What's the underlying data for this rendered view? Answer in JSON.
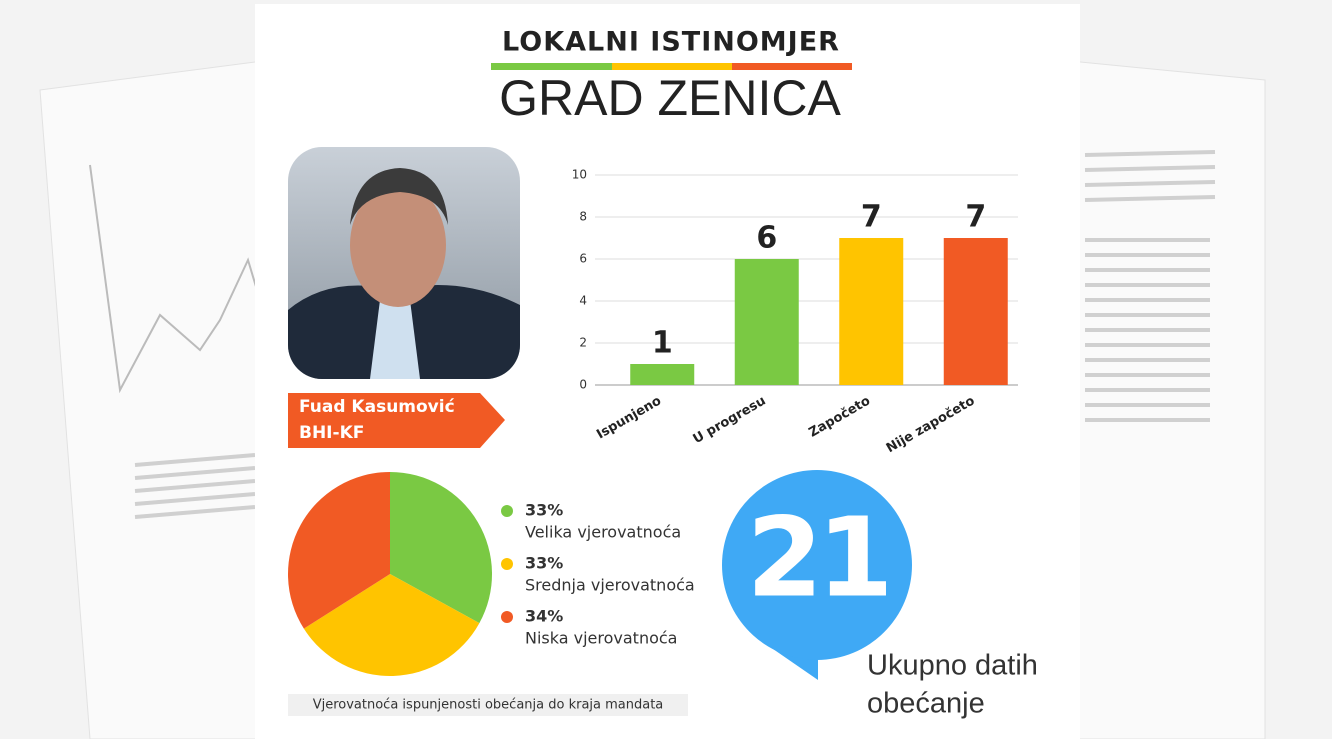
{
  "header": {
    "title": "LOKALNI ISTINOMJER",
    "subtitle": "GRAD ZENICA"
  },
  "candidate": {
    "name": "Fuad Kasumović",
    "party": "BHI-KF"
  },
  "chart_data": [
    {
      "type": "bar",
      "categories": [
        "Ispunjeno",
        "U progresu",
        "Započeto",
        "Nije započeto"
      ],
      "values": [
        1,
        6,
        7,
        7
      ],
      "colors": [
        "#7ac943",
        "#7ac943",
        "#ffc400",
        "#f15a24"
      ],
      "ylim": [
        0,
        10
      ],
      "yticks": [
        0,
        2,
        4,
        6,
        8,
        10
      ],
      "grid": true
    },
    {
      "type": "pie",
      "categories": [
        "Velika vjerovatnoća",
        "Srednja vjerovatnoća",
        "Niska vjerovatnoća"
      ],
      "values": [
        33,
        33,
        34
      ],
      "value_labels": [
        "33%",
        "33%",
        "34%"
      ],
      "colors": [
        "#7ac943",
        "#ffc400",
        "#f15a24"
      ],
      "caption": "Vjerovatnoća ispunjenosti obećanja do kraja mandata"
    }
  ],
  "total": {
    "value": 21,
    "label": [
      "Ukupno datih",
      "obećanje"
    ]
  }
}
